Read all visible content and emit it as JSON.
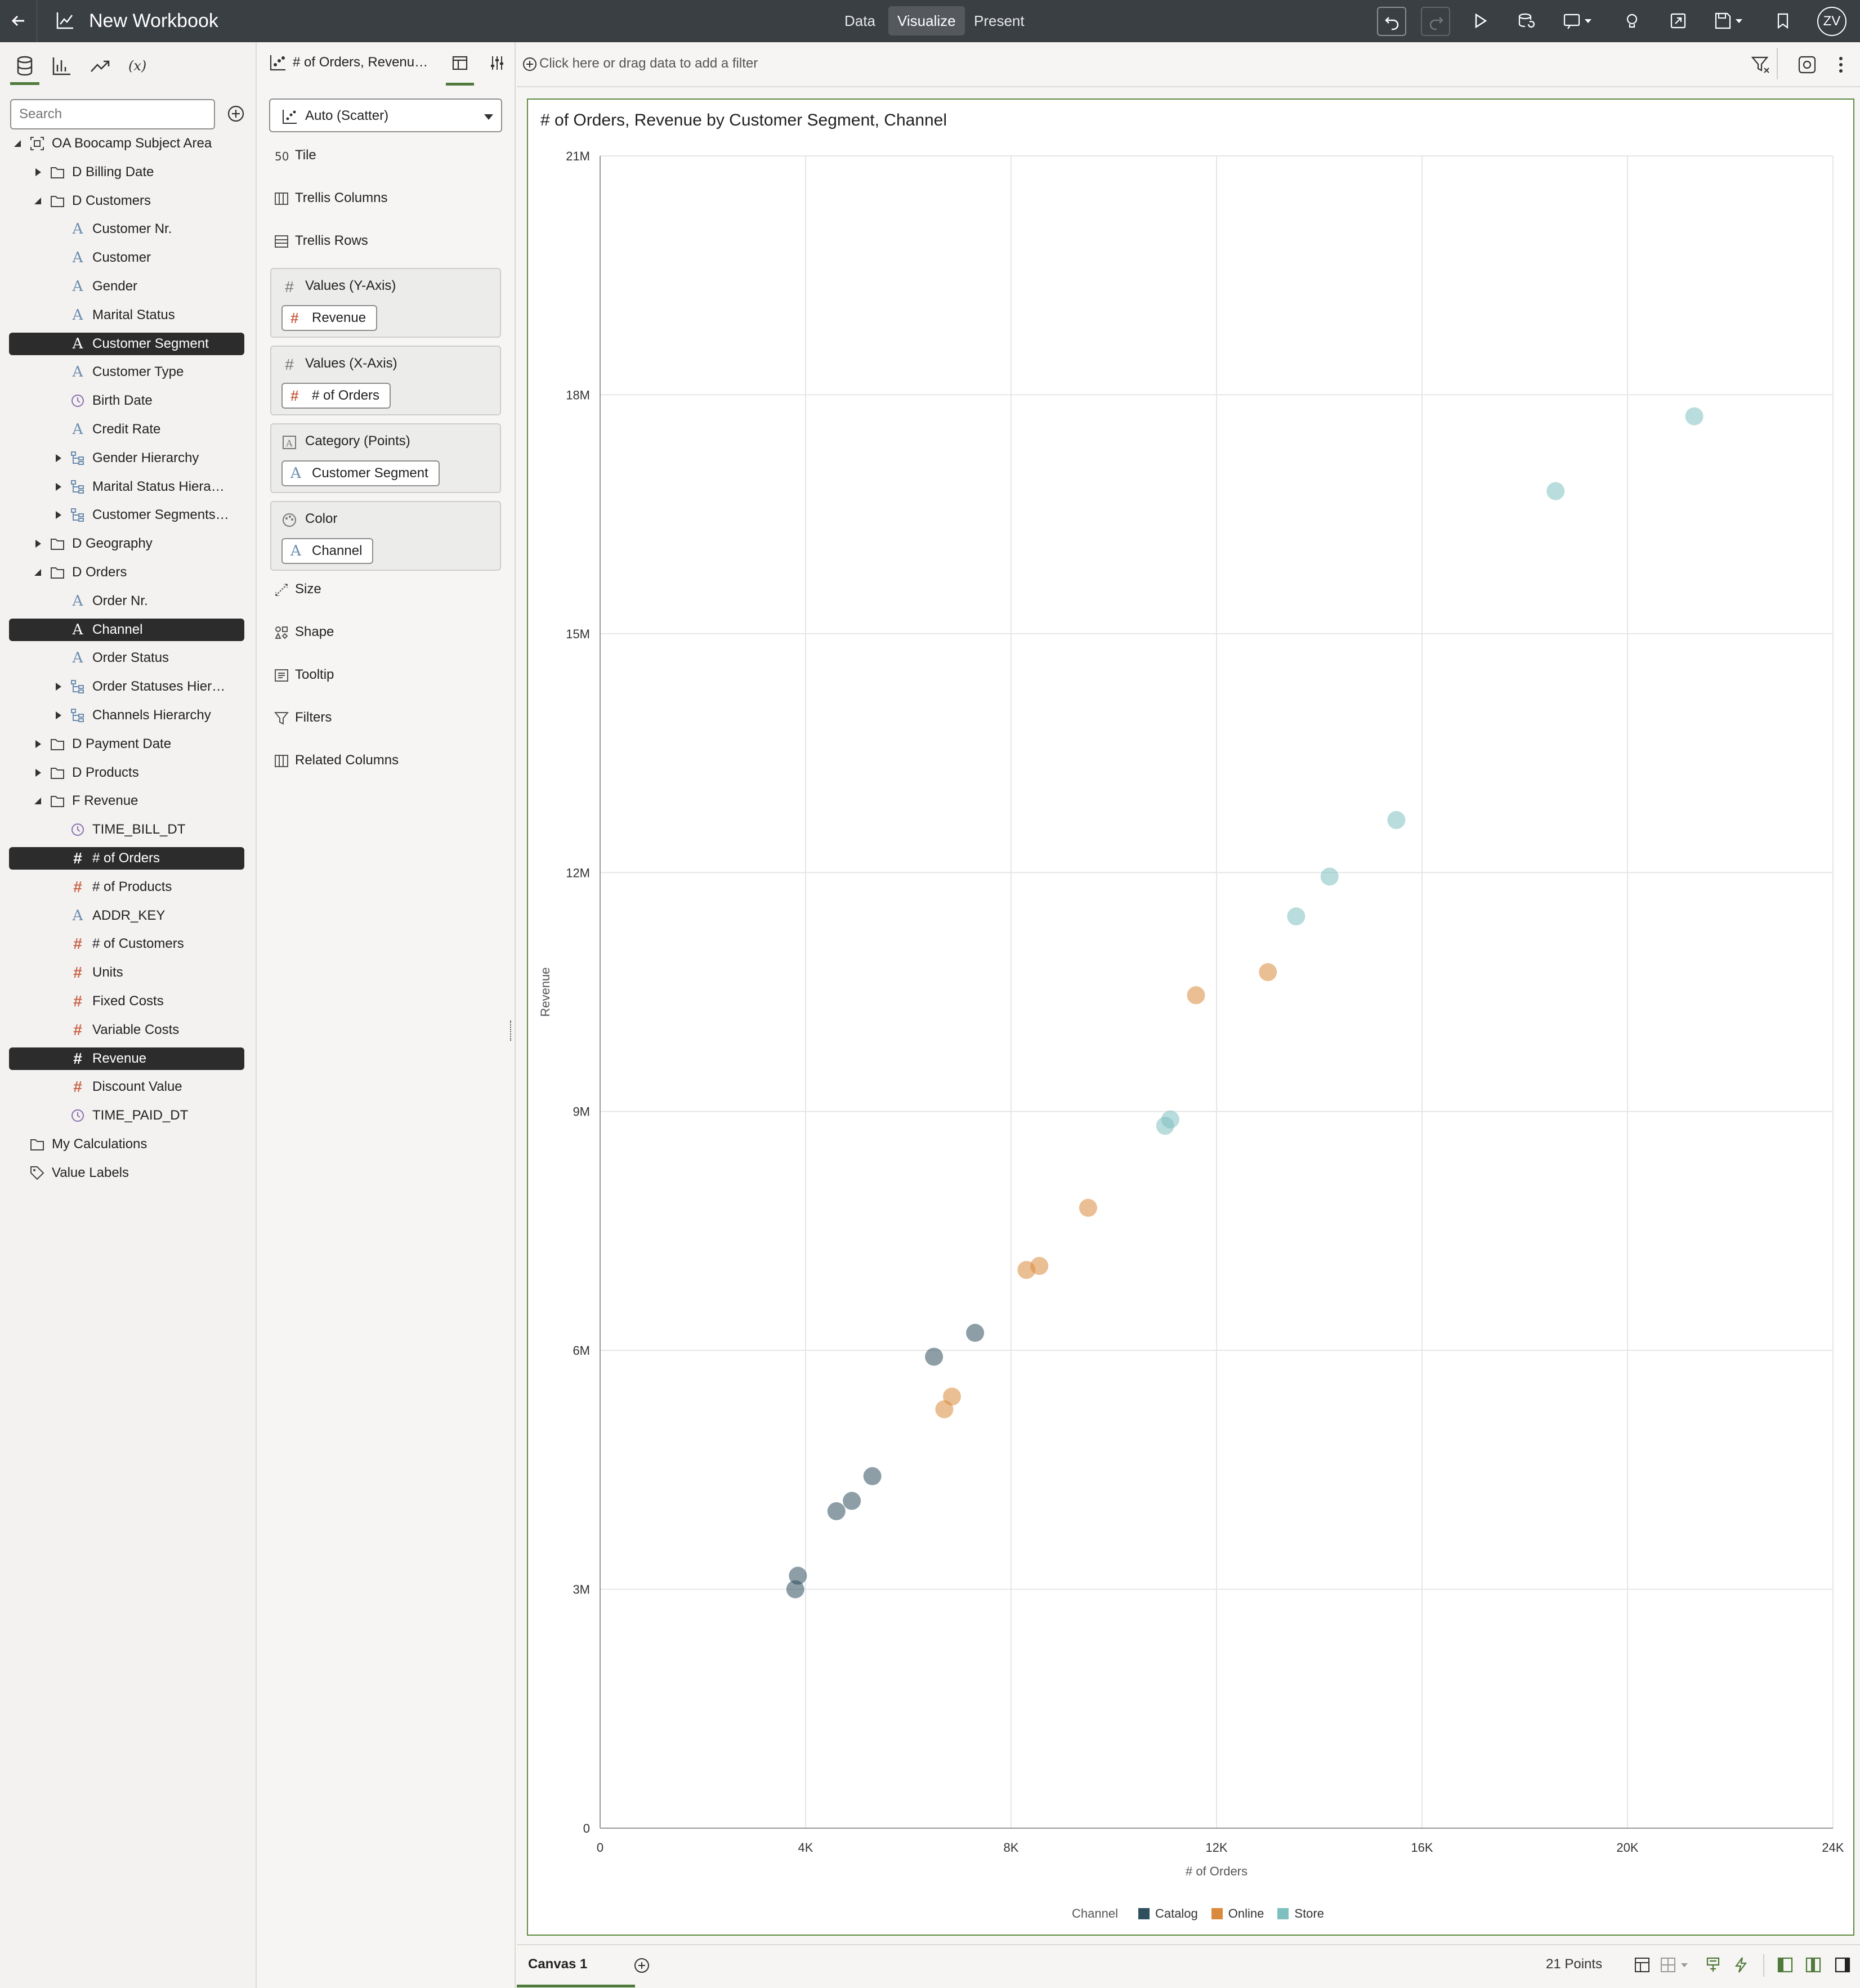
{
  "app": {
    "title": "New Workbook",
    "nav": [
      "Data",
      "Visualize",
      "Present"
    ],
    "active_nav": "Visualize",
    "user_initials": "ZV"
  },
  "left_pane": {
    "search_placeholder": "Search",
    "tree": [
      {
        "label": "OA Boocamp Subject Area",
        "icon": "subject-area-icon",
        "toggle": "expanded",
        "selected": false
      },
      {
        "label": "D Billing Date",
        "icon": "folder-icon",
        "toggle": "collapsed",
        "selected": false
      },
      {
        "label": "D Customers",
        "icon": "folder-icon",
        "toggle": "expanded",
        "selected": false
      },
      {
        "label": "Customer Nr.",
        "icon": "attribute-icon",
        "toggle": "",
        "selected": false
      },
      {
        "label": "Customer",
        "icon": "attribute-icon",
        "toggle": "",
        "selected": false
      },
      {
        "label": "Gender",
        "icon": "attribute-icon",
        "toggle": "",
        "selected": false
      },
      {
        "label": "Marital Status",
        "icon": "attribute-icon",
        "toggle": "",
        "selected": false
      },
      {
        "label": "Customer Segment",
        "icon": "attribute-icon",
        "toggle": "",
        "selected": true
      },
      {
        "label": "Customer Type",
        "icon": "attribute-icon",
        "toggle": "",
        "selected": false
      },
      {
        "label": "Birth Date",
        "icon": "clock-icon",
        "toggle": "",
        "selected": false
      },
      {
        "label": "Credit Rate",
        "icon": "attribute-icon",
        "toggle": "",
        "selected": false
      },
      {
        "label": "Gender Hierarchy",
        "icon": "hierarchy-icon",
        "toggle": "collapsed",
        "selected": false
      },
      {
        "label": "Marital Status Hiera…",
        "icon": "hierarchy-icon",
        "toggle": "collapsed",
        "selected": false
      },
      {
        "label": "Customer Segments…",
        "icon": "hierarchy-icon",
        "toggle": "collapsed",
        "selected": false
      },
      {
        "label": "D Geography",
        "icon": "folder-icon",
        "toggle": "collapsed",
        "selected": false
      },
      {
        "label": "D Orders",
        "icon": "folder-icon",
        "toggle": "expanded",
        "selected": false
      },
      {
        "label": "Order Nr.",
        "icon": "attribute-icon",
        "toggle": "",
        "selected": false
      },
      {
        "label": "Channel",
        "icon": "attribute-icon",
        "toggle": "",
        "selected": true
      },
      {
        "label": "Order Status",
        "icon": "attribute-icon",
        "toggle": "",
        "selected": false
      },
      {
        "label": "Order Statuses Hier…",
        "icon": "hierarchy-icon",
        "toggle": "collapsed",
        "selected": false
      },
      {
        "label": "Channels Hierarchy",
        "icon": "hierarchy-icon",
        "toggle": "collapsed",
        "selected": false
      },
      {
        "label": "D Payment Date",
        "icon": "folder-icon",
        "toggle": "collapsed",
        "selected": false
      },
      {
        "label": "D Products",
        "icon": "folder-icon",
        "toggle": "collapsed",
        "selected": false
      },
      {
        "label": "F Revenue",
        "icon": "folder-icon",
        "toggle": "expanded",
        "selected": false
      },
      {
        "label": "TIME_BILL_DT",
        "icon": "clock-icon",
        "toggle": "",
        "selected": false
      },
      {
        "label": "# of Orders",
        "icon": "measure-icon",
        "toggle": "",
        "selected": true
      },
      {
        "label": "# of Products",
        "icon": "measure-icon",
        "toggle": "",
        "selected": false
      },
      {
        "label": "ADDR_KEY",
        "icon": "attribute-icon",
        "toggle": "",
        "selected": false
      },
      {
        "label": "# of Customers",
        "icon": "measure-icon",
        "toggle": "",
        "selected": false
      },
      {
        "label": "Units",
        "icon": "measure-icon",
        "toggle": "",
        "selected": false
      },
      {
        "label": "Fixed Costs",
        "icon": "measure-icon",
        "toggle": "",
        "selected": false
      },
      {
        "label": "Variable Costs",
        "icon": "measure-icon",
        "toggle": "",
        "selected": false
      },
      {
        "label": "Revenue",
        "icon": "measure-icon",
        "toggle": "",
        "selected": true
      },
      {
        "label": "Discount Value",
        "icon": "measure-icon",
        "toggle": "",
        "selected": false
      },
      {
        "label": "TIME_PAID_DT",
        "icon": "clock-icon",
        "toggle": "",
        "selected": false
      },
      {
        "label": "My Calculations",
        "icon": "folder-icon",
        "toggle": "none",
        "selected": false
      },
      {
        "label": "Value Labels",
        "icon": "tag-icon",
        "toggle": "none",
        "selected": false
      }
    ]
  },
  "grammar": {
    "viz_title_short": "# of Orders, Revenu…",
    "viz_type": "Auto (Scatter)",
    "rows_top": [
      {
        "label": "Tile",
        "icon": "tile-icon"
      },
      {
        "label": "Trellis Columns",
        "icon": "trellis-columns-icon"
      },
      {
        "label": "Trellis Rows",
        "icon": "trellis-rows-icon"
      }
    ],
    "boxes": [
      {
        "label": "Values (Y-Axis)",
        "pill": "Revenue",
        "pill_icon": "measure-icon"
      },
      {
        "label": "Values (X-Axis)",
        "pill": "# of Orders",
        "pill_icon": "measure-icon"
      },
      {
        "label": "Category (Points)",
        "pill": "Customer Segment",
        "pill_icon": "attribute-icon"
      },
      {
        "label": "Color",
        "pill": "Channel",
        "pill_icon": "attribute-icon"
      }
    ],
    "rows_bottom": [
      {
        "label": "Size",
        "icon": "size-icon"
      },
      {
        "label": "Shape",
        "icon": "shape-icon"
      },
      {
        "label": "Tooltip",
        "icon": "tooltip-icon"
      },
      {
        "label": "Filters",
        "icon": "filter-icon"
      },
      {
        "label": "Related Columns",
        "icon": "related-columns-icon"
      }
    ]
  },
  "filter_bar": {
    "placeholder": "Click here or drag data to add a filter"
  },
  "chart_data": {
    "type": "scatter",
    "title": "# of Orders, Revenue by Customer Segment, Channel",
    "xlabel": "# of Orders",
    "ylabel": "Revenue",
    "xlim": [
      0,
      24000
    ],
    "ylim": [
      0,
      21000000
    ],
    "x_ticks": [
      "0",
      "4K",
      "8K",
      "12K",
      "16K",
      "20K",
      "24K"
    ],
    "y_ticks": [
      "0",
      "3M",
      "6M",
      "9M",
      "12M",
      "15M",
      "18M",
      "21M"
    ],
    "grid": true,
    "legend": {
      "title": "Channel",
      "position": "bottom"
    },
    "series": [
      {
        "name": "Catalog",
        "color": "#2f4f5f",
        "points": [
          [
            3800,
            3000000
          ],
          [
            3850,
            3170000
          ],
          [
            4600,
            3980000
          ],
          [
            4900,
            4110000
          ],
          [
            5300,
            4420000
          ],
          [
            6500,
            5920000
          ],
          [
            7300,
            6220000
          ]
        ]
      },
      {
        "name": "Online",
        "color": "#d98a3c",
        "points": [
          [
            6700,
            5260000
          ],
          [
            6850,
            5420000
          ],
          [
            8300,
            7010000
          ],
          [
            8550,
            7060000
          ],
          [
            9500,
            7790000
          ],
          [
            11600,
            10460000
          ],
          [
            13000,
            10750000
          ]
        ]
      },
      {
        "name": "Store",
        "color": "#7fbfbf",
        "points": [
          [
            11000,
            8820000
          ],
          [
            11100,
            8900000
          ],
          [
            13550,
            11450000
          ],
          [
            14200,
            11950000
          ],
          [
            15500,
            12660000
          ],
          [
            18600,
            16790000
          ],
          [
            21300,
            17730000
          ]
        ]
      }
    ]
  },
  "bottom_bar": {
    "canvas_tab": "Canvas 1",
    "points_count": "21 Points"
  }
}
